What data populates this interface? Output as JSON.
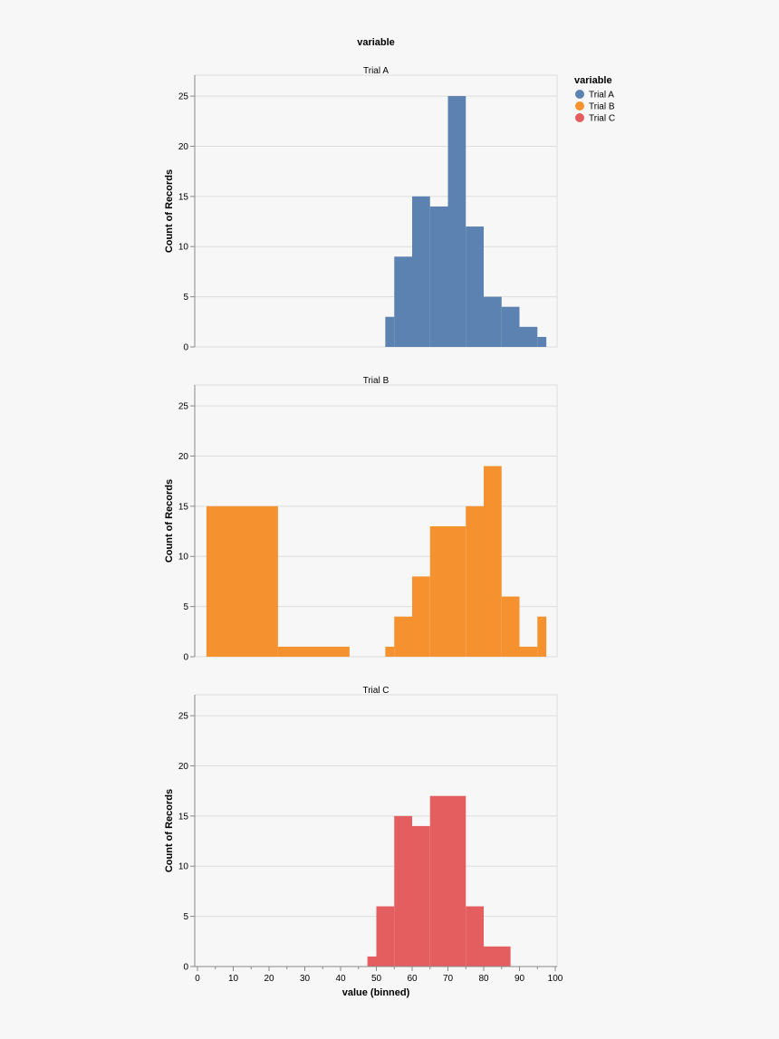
{
  "chart_data": {
    "type": "bar",
    "header_title": "variable",
    "x_axis": {
      "label": "value (binned)",
      "range": [
        0,
        100
      ],
      "tick_values": [
        0,
        10,
        20,
        30,
        40,
        50,
        60,
        70,
        80,
        90,
        100
      ],
      "tick_labels": [
        "0",
        "10",
        "20",
        "30",
        "40",
        "50",
        "60",
        "70",
        "80",
        "90",
        "100"
      ]
    },
    "y_axis": {
      "label": "Count of Records",
      "range": [
        0,
        26
      ],
      "tick_values": [
        0,
        5,
        10,
        15,
        20,
        25
      ],
      "tick_labels": [
        "0",
        "5",
        "10",
        "15",
        "20",
        "25"
      ]
    },
    "grid": true,
    "legend": {
      "title": "variable",
      "position": "top-right",
      "entries": [
        {
          "label": "Trial A",
          "color": "#5b82b0"
        },
        {
          "label": "Trial B",
          "color": "#f5912e"
        },
        {
          "label": "Trial C",
          "color": "#e45e5f"
        }
      ]
    },
    "facets": [
      {
        "title": "Trial A",
        "color": "#5b82b0",
        "bins": [
          {
            "x0": 52.5,
            "x1": 55,
            "count": 3
          },
          {
            "x0": 55,
            "x1": 60,
            "count": 9
          },
          {
            "x0": 60,
            "x1": 65,
            "count": 15
          },
          {
            "x0": 65,
            "x1": 70,
            "count": 14
          },
          {
            "x0": 70,
            "x1": 75,
            "count": 25
          },
          {
            "x0": 75,
            "x1": 80,
            "count": 12
          },
          {
            "x0": 80,
            "x1": 85,
            "count": 5
          },
          {
            "x0": 85,
            "x1": 90,
            "count": 4
          },
          {
            "x0": 90,
            "x1": 95,
            "count": 2
          },
          {
            "x0": 95,
            "x1": 97.5,
            "count": 1
          }
        ]
      },
      {
        "title": "Trial B",
        "color": "#f5912e",
        "bins": [
          {
            "x0": 2.5,
            "x1": 22.5,
            "count": 15
          },
          {
            "x0": 22.5,
            "x1": 42.5,
            "count": 1
          },
          {
            "x0": 52.5,
            "x1": 55,
            "count": 1
          },
          {
            "x0": 55,
            "x1": 60,
            "count": 4
          },
          {
            "x0": 60,
            "x1": 65,
            "count": 8
          },
          {
            "x0": 65,
            "x1": 75,
            "count": 13
          },
          {
            "x0": 75,
            "x1": 80,
            "count": 15
          },
          {
            "x0": 80,
            "x1": 85,
            "count": 19
          },
          {
            "x0": 85,
            "x1": 90,
            "count": 6
          },
          {
            "x0": 90,
            "x1": 95,
            "count": 1
          },
          {
            "x0": 95,
            "x1": 97.5,
            "count": 4
          }
        ]
      },
      {
        "title": "Trial C",
        "color": "#e45e5f",
        "bins": [
          {
            "x0": 47.5,
            "x1": 50,
            "count": 1
          },
          {
            "x0": 50,
            "x1": 55,
            "count": 6
          },
          {
            "x0": 55,
            "x1": 60,
            "count": 15
          },
          {
            "x0": 60,
            "x1": 65,
            "count": 14
          },
          {
            "x0": 65,
            "x1": 75,
            "count": 17
          },
          {
            "x0": 75,
            "x1": 80,
            "count": 6
          },
          {
            "x0": 80,
            "x1": 87.5,
            "count": 2
          }
        ]
      }
    ]
  }
}
